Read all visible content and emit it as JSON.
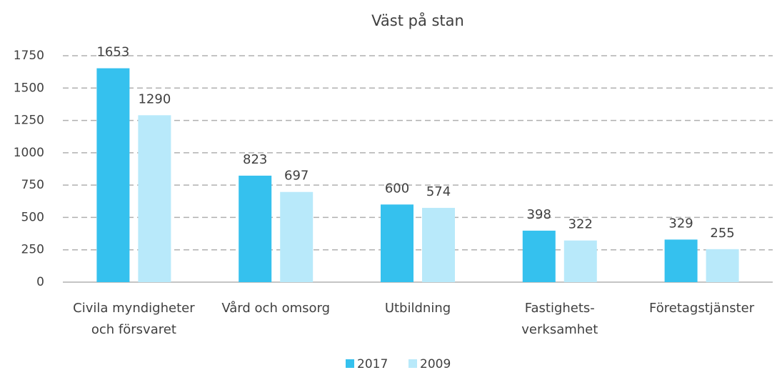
{
  "chart_data": {
    "type": "bar",
    "title": "Väst på stan",
    "categories": [
      [
        "Civila myndigheter",
        "och försvaret"
      ],
      [
        "Vård och omsorg"
      ],
      [
        "Utbildning"
      ],
      [
        "Fastighets-",
        "verksamhet"
      ],
      [
        "Företagstjänster"
      ]
    ],
    "series": [
      {
        "name": "2017",
        "color": "#35c1ee",
        "values": [
          1653,
          823,
          600,
          398,
          329
        ]
      },
      {
        "name": "2009",
        "color": "#b8e9fa",
        "values": [
          1290,
          697,
          574,
          322,
          255
        ]
      }
    ],
    "ylim": [
      0,
      1750
    ],
    "yticks": [
      0,
      250,
      500,
      750,
      1000,
      1250,
      1500,
      1750
    ],
    "grid": true,
    "legend": "bottom"
  }
}
